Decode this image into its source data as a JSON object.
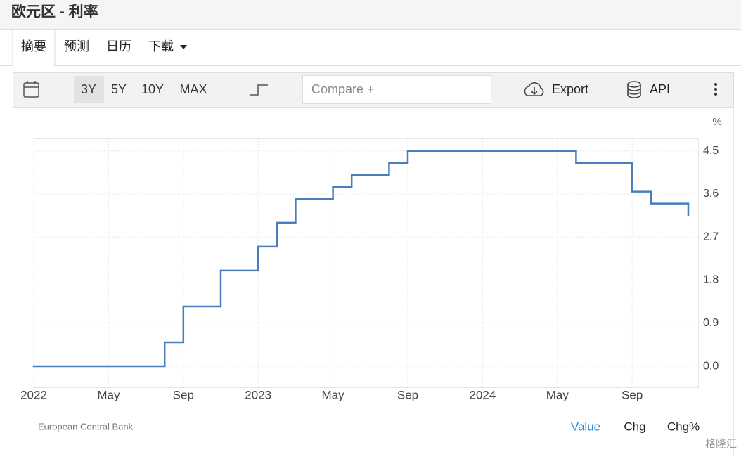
{
  "header": {
    "title": "欧元区 - 利率"
  },
  "tabs": [
    "摘要",
    "预测",
    "日历",
    "下载"
  ],
  "toolbar": {
    "ranges": [
      "3Y",
      "5Y",
      "10Y",
      "MAX"
    ],
    "compare": "Compare +",
    "export": "Export",
    "api": "API"
  },
  "footer": {
    "source": "European Central Bank",
    "modes": [
      "Value",
      "Chg",
      "Chg%"
    ],
    "watermark": "格隆汇"
  },
  "chart_data": {
    "type": "step",
    "unit": "%",
    "color": "#4a7ebb",
    "grid": true,
    "x": [
      "2022-01",
      "2022-08",
      "2022-09",
      "2022-11",
      "2023-01",
      "2023-02",
      "2023-03",
      "2023-05",
      "2023-06",
      "2023-08",
      "2023-09",
      "2024-06",
      "2024-09",
      "2024-10",
      "2024-12"
    ],
    "values": [
      0,
      0.5,
      1.25,
      2,
      2.5,
      3,
      3.5,
      3.75,
      4,
      4.25,
      4.5,
      4.25,
      3.65,
      3.4,
      3.15
    ],
    "xlim": [
      "2022-01",
      "2024-12"
    ],
    "xticks": [
      {
        "value": "2022-01",
        "label": "2022"
      },
      {
        "value": "2022-05",
        "label": "May"
      },
      {
        "value": "2022-09",
        "label": "Sep"
      },
      {
        "value": "2023-01",
        "label": "2023"
      },
      {
        "value": "2023-05",
        "label": "May"
      },
      {
        "value": "2023-09",
        "label": "Sep"
      },
      {
        "value": "2024-01",
        "label": "2024"
      },
      {
        "value": "2024-05",
        "label": "May"
      },
      {
        "value": "2024-09",
        "label": "Sep"
      }
    ],
    "ylim": [
      -0.44,
      4.76
    ],
    "yticks": [
      {
        "value": 0,
        "label": "0.0"
      },
      0.9,
      1.8,
      2.7,
      3.6,
      4.5
    ]
  }
}
